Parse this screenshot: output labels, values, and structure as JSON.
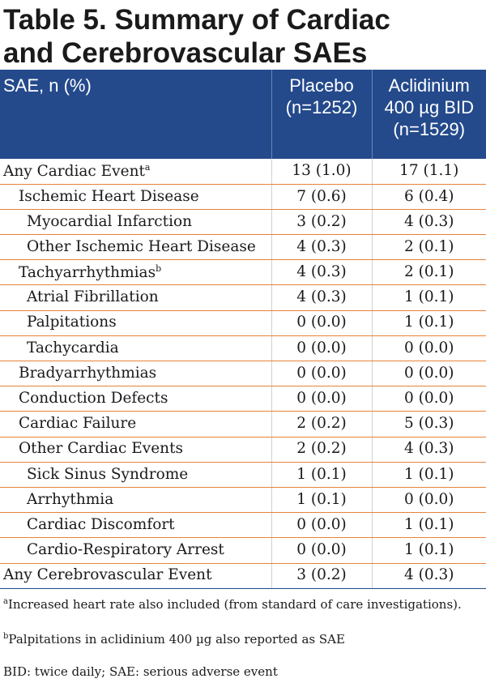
{
  "title": {
    "line1": "Table 5. Summary of Cardiac",
    "line2": "and Cerebrovascular SAEs"
  },
  "header": {
    "col1": "SAE, n (%)",
    "col2_line1": "Placebo",
    "col2_line2": "(n=1252)",
    "col3_line1": "Aclidinium",
    "col3_line2": "400 µg BID",
    "col3_line3": "(n=1529)"
  },
  "rows": [
    {
      "label": "Any Cardiac Event",
      "sup": "a",
      "placebo": "13 (1.0)",
      "aclidinium": "17 (1.1)"
    },
    {
      "label": "Ischemic Heart Disease",
      "placebo": "7 (0.6)",
      "aclidinium": "6 (0.4)"
    },
    {
      "label": "Myocardial Infarction",
      "placebo": "3 (0.2)",
      "aclidinium": "4 (0.3)"
    },
    {
      "label": "Other Ischemic Heart Disease",
      "placebo": "4 (0.3)",
      "aclidinium": "2 (0.1)"
    },
    {
      "label": "Tachyarrhythmias",
      "sup": "b",
      "placebo": "4 (0.3)",
      "aclidinium": "2 (0.1)"
    },
    {
      "label": "Atrial Fibrillation",
      "placebo": "4 (0.3)",
      "aclidinium": "1 (0.1)"
    },
    {
      "label": "Palpitations",
      "placebo": "0 (0.0)",
      "aclidinium": "1 (0.1)"
    },
    {
      "label": "Tachycardia",
      "placebo": "0 (0.0)",
      "aclidinium": "0 (0.0)"
    },
    {
      "label": "Bradyarrhythmias",
      "placebo": "0 (0.0)",
      "aclidinium": "0 (0.0)"
    },
    {
      "label": "Conduction Defects",
      "placebo": "0 (0.0)",
      "aclidinium": "0 (0.0)"
    },
    {
      "label": "Cardiac Failure",
      "placebo": "2 (0.2)",
      "aclidinium": "5 (0.3)"
    },
    {
      "label": "Other Cardiac Events",
      "placebo": "2 (0.2)",
      "aclidinium": "4 (0.3)"
    },
    {
      "label": "Sick Sinus Syndrome",
      "placebo": "1 (0.1)",
      "aclidinium": "1 (0.1)"
    },
    {
      "label": "Arrhythmia",
      "placebo": "1 (0.1)",
      "aclidinium": "0 (0.0)"
    },
    {
      "label": "Cardiac Discomfort",
      "placebo": "0 (0.0)",
      "aclidinium": "1 (0.1)"
    },
    {
      "label": "Cardio-Respiratory Arrest",
      "placebo": "0 (0.0)",
      "aclidinium": "1 (0.1)"
    },
    {
      "label": "Any Cerebrovascular Event",
      "placebo": "3 (0.2)",
      "aclidinium": "4 (0.3)"
    }
  ],
  "footnotes": {
    "a_mark": "a",
    "a_text": "Increased heart rate also included (from standard of care investigations).",
    "b_mark": "b",
    "b_text": "Palpitations in aclidinium 400 µg also reported as SAE",
    "abbrev": "BID: twice daily; SAE: serious adverse event"
  },
  "colors": {
    "header_bg": "#244a8c",
    "row_rule": "#e8823a"
  }
}
